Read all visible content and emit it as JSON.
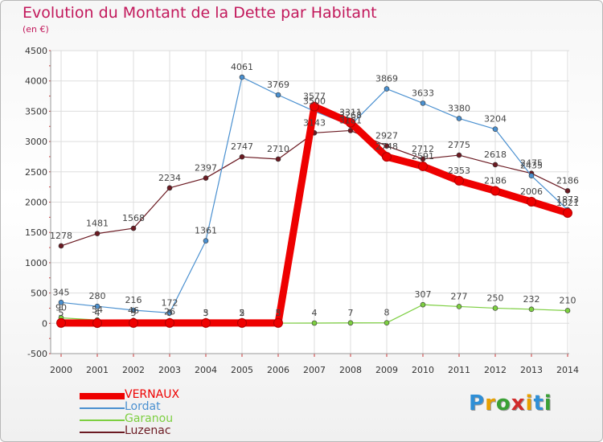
{
  "title": "Evolution du Montant de la Dette par Habitant",
  "unit": "(en €)",
  "logo": {
    "text": "Proxiti",
    "colors": [
      "#2f8fd6",
      "#e8a000",
      "#3aa035",
      "#d12b2b",
      "#e8a000",
      "#2f8fd6",
      "#3aa035"
    ]
  },
  "chart_data": {
    "type": "line",
    "x": [
      2000,
      2001,
      2002,
      2003,
      2004,
      2005,
      2006,
      2007,
      2008,
      2009,
      2010,
      2011,
      2012,
      2013,
      2014
    ],
    "ylim": [
      -500,
      4500
    ],
    "yticks": [
      -500,
      0,
      500,
      1000,
      1500,
      2000,
      2500,
      3000,
      3500,
      4000,
      4500
    ],
    "grid": true,
    "legend": "bottom-left",
    "series": [
      {
        "name": "Luzenac",
        "color": "#6b1a22",
        "width": 1.2,
        "values": [
          1278,
          1481,
          1568,
          2234,
          2397,
          2747,
          2710,
          3143,
          3181,
          2927,
          2712,
          2775,
          2618,
          2475,
          2186
        ],
        "labels": [
          "1278",
          "1481",
          "1568",
          "2234",
          "2397",
          "2747",
          "2710",
          "3143",
          "3181",
          "2927",
          "2712",
          "2775",
          "2618",
          "2475",
          "2186"
        ]
      },
      {
        "name": "Garanou",
        "color": "#7dcf41",
        "width": 1.2,
        "values": [
          90,
          54,
          46,
          26,
          3,
          2,
          3,
          4,
          7,
          8,
          307,
          277,
          250,
          232,
          210
        ],
        "labels": [
          "90",
          "54",
          "46",
          "26",
          "3",
          "2",
          "3",
          "4",
          "7",
          "8",
          "307",
          "277",
          "250",
          "232",
          "210"
        ]
      },
      {
        "name": "Lordat",
        "color": "#4a90d0",
        "width": 1.2,
        "values": [
          345,
          280,
          216,
          172,
          1361,
          4061,
          3769,
          3500,
          3268,
          3869,
          3633,
          3380,
          3204,
          2435,
          1873
        ],
        "labels": [
          "345",
          "280",
          "216",
          "172",
          "1361",
          "4061",
          "3769",
          "3500",
          "3268",
          "3869",
          "3633",
          "3380",
          "3204",
          "2435",
          "1873"
        ]
      },
      {
        "name": "VERNAUX",
        "color": "#ee0000",
        "width": 9,
        "values": [
          5,
          4,
          5,
          5,
          5,
          5,
          5,
          3577,
          3311,
          2748,
          2591,
          2353,
          2186,
          2006,
          1821
        ],
        "labels": [
          "5",
          "4",
          "5",
          "5",
          "5",
          "5",
          "5",
          "3577",
          "3311",
          "2748",
          "2591",
          "2353",
          "2186",
          "2006",
          "1821"
        ]
      }
    ]
  }
}
